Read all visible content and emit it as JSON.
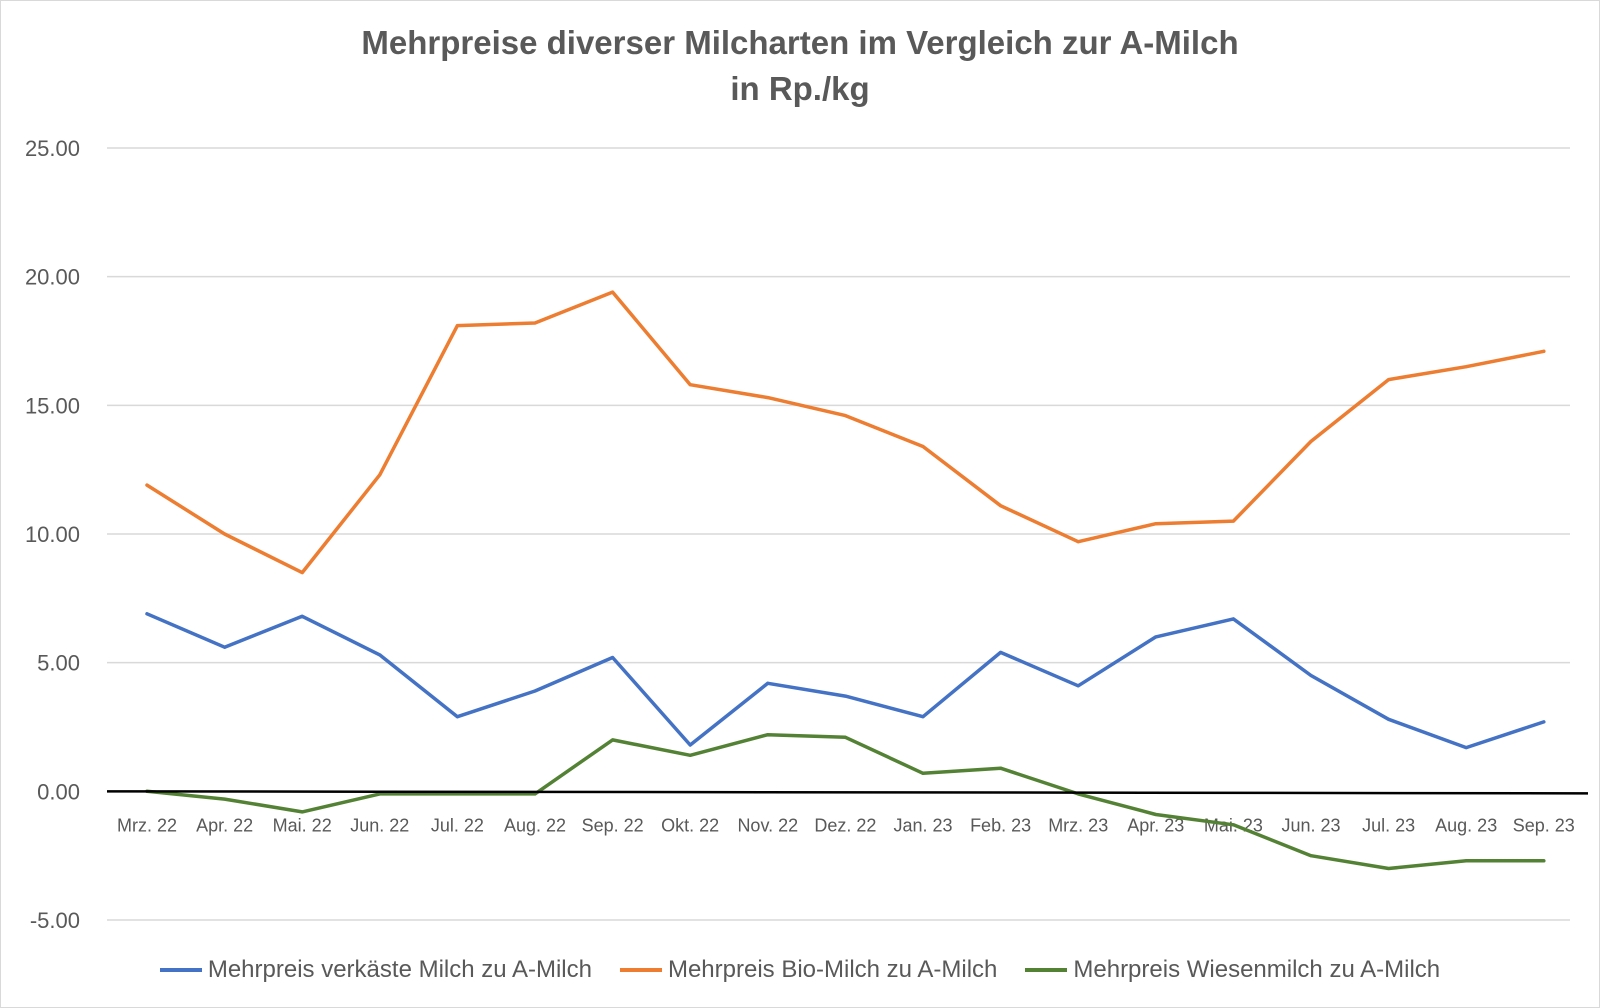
{
  "chart_data": {
    "type": "line",
    "title": "Mehrpreise diverser Milcharten im Vergleich zur A-Milch",
    "subtitle": "in Rp./kg",
    "xlabel": "",
    "ylabel": "",
    "ylim": [
      -5,
      25
    ],
    "yticks": [
      "25.00",
      "20.00",
      "15.00",
      "10.00",
      "5.00",
      "0.00",
      "-5.00"
    ],
    "ytick_values": [
      25,
      20,
      15,
      10,
      5,
      0,
      -5
    ],
    "grid": true,
    "legend_position": "bottom",
    "categories": [
      "Mrz. 22",
      "Apr. 22",
      "Mai. 22",
      "Jun. 22",
      "Jul. 22",
      "Aug. 22",
      "Sep. 22",
      "Okt. 22",
      "Nov. 22",
      "Dez. 22",
      "Jan. 23",
      "Feb. 23",
      "Mrz. 23",
      "Apr. 23",
      "Mai. 23",
      "Jun. 23",
      "Jul. 23",
      "Aug. 23",
      "Sep. 23"
    ],
    "series": [
      {
        "name": "Mehrpreis verkäste Milch zu A-Milch",
        "color": "#4472c4",
        "values": [
          6.9,
          5.6,
          6.8,
          5.3,
          2.9,
          3.9,
          5.2,
          1.8,
          4.2,
          3.7,
          2.9,
          5.4,
          4.1,
          6.0,
          6.7,
          4.5,
          2.8,
          1.7,
          2.7
        ]
      },
      {
        "name": "Mehrpreis Bio-Milch zu A-Milch",
        "color": "#ed7d31",
        "values": [
          11.9,
          10.0,
          8.5,
          12.3,
          18.1,
          18.2,
          19.4,
          15.8,
          15.3,
          14.6,
          13.4,
          11.1,
          9.7,
          10.4,
          10.5,
          13.6,
          16.0,
          16.5,
          17.1
        ]
      },
      {
        "name": "Mehrpreis Wiesenmilch zu A-Milch",
        "color": "#548235",
        "values": [
          0.0,
          -0.3,
          -0.8,
          -0.1,
          -0.1,
          -0.1,
          2.0,
          1.4,
          2.2,
          2.1,
          0.7,
          0.9,
          -0.1,
          -0.9,
          -1.3,
          -2.5,
          -3.0,
          -2.7,
          -2.7
        ]
      }
    ]
  }
}
